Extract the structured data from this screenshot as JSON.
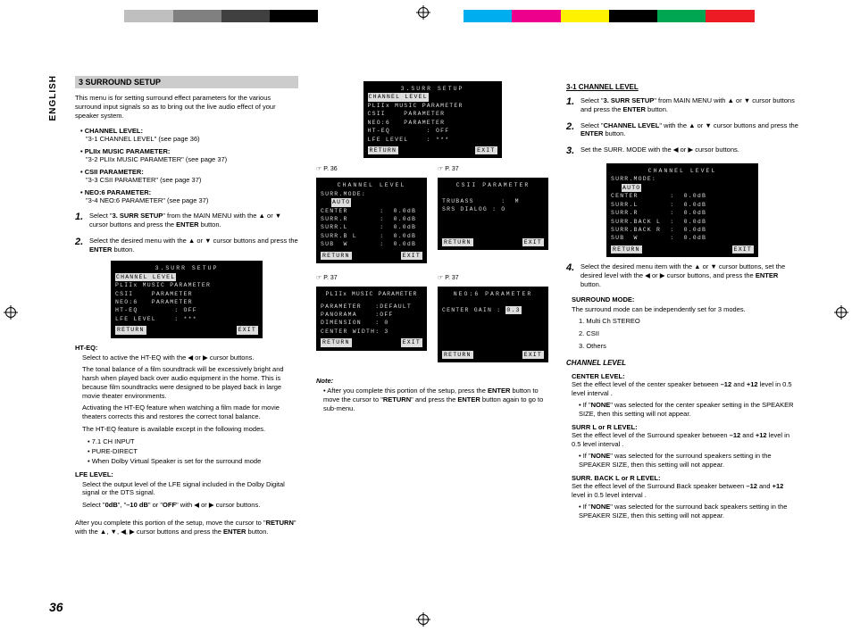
{
  "colorbar": [
    "#ffffff",
    "#bfbfbf",
    "#808080",
    "#404040",
    "#000000",
    "#ffffff",
    "#ffffff",
    "#ffffff",
    "#00aeef",
    "#ec008c",
    "#fff200",
    "#000000",
    "#00a651",
    "#ed1c24",
    "#ffffff"
  ],
  "english_tab": "ENGLISH",
  "page_number": "36",
  "section3": {
    "header": "3 SURROUND SETUP",
    "intro": "This menu is for setting surround effect parameters for the various surround input signals so as to bring out the live audio effect of your speaker system.",
    "bullets": [
      {
        "title": "• CHANNEL LEVEL:",
        "sub": "\"3-1 CHANNEL LEVEL\" (see page 36)"
      },
      {
        "title": "• PLIIx MUSIC PARAMETER:",
        "sub": "\"3-2 PLIIx MUSIC PARAMETER\" (see page 37)"
      },
      {
        "title": "• CSII PARAMETER:",
        "sub": "\"3-3 CSII PARAMETER\" (see page 37)"
      },
      {
        "title": "• NEO:6 PARAMETER:",
        "sub": "\"3-4 NEO:6 PARAMETER\" (see page 37)"
      }
    ],
    "step1": "Select \"3. SURR SETUP\" from the MAIN MENU with the ▲ or ▼ cursor buttons and press the ENTER button.",
    "step2": "Select the desired menu with the ▲ or ▼ cursor buttons and press the ENTER button.",
    "hteq_title": "HT-EQ:",
    "hteq_p1": "Select to active the HT-EQ with the ◀ or ▶ cursor buttons.",
    "hteq_p2": "The tonal balance of a film soundtrack will be excessively bright and harsh when played back over audio equipment in the home. This is because film soundtracks were designed to be played back in large movie theater environments.",
    "hteq_p3": "Activating the HT-EQ feature when watching a film made for movie theaters corrects this and restores the correct tonal balance.",
    "hteq_p4": "The HT-EQ feature is available except in the following modes.",
    "hteq_modes": [
      "• 7.1 CH INPUT",
      "• PURE-DIRECT",
      "• When Dolby Virtual Speaker is set for the surround mode"
    ],
    "lfe_title": "LFE LEVEL:",
    "lfe_p1": "Select the output level of the LFE signal included in the Dolby Digital signal or the DTS signal.",
    "lfe_p2": "Select \"0dB\", \"–10 dB\" or \"OFF\" with ◀ or ▶ cursor buttons.",
    "after": "After you complete this portion of the setup, move the cursor to \"RETURN\" with the ▲, ▼, ◀, ▶ cursor buttons and press the ENTER button."
  },
  "osd_main": {
    "title": "3.SURR SETUP",
    "rows": [
      "CHANNEL LEVEL",
      "PLIIx MUSIC PARAMETER",
      "CSII    PARAMETER",
      "NEO:6   PARAMETER",
      "",
      "HT-EQ        : OFF",
      "LFE LEVEL    : ***"
    ],
    "return": "RETURN",
    "exit": "EXIT"
  },
  "osd_grid": {
    "top": {
      "title": "3.SURR SETUP",
      "rows": [
        "CHANNEL LEVEL",
        "PLIIx MUSIC PARAMETER",
        "CSII    PARAMETER",
        "NEO:6   PARAMETER",
        "",
        "HT-EQ        : OFF",
        "LFE LEVEL    : ***"
      ],
      "return": "RETURN",
      "exit": "EXIT"
    },
    "ref1": "☞ P. 36",
    "ref2": "☞ P. 37",
    "ref3": "☞ P. 37",
    "ref4": "☞ P. 37",
    "chlevel": {
      "title": "CHANNEL LEVEL",
      "mode": "SURR.MODE:",
      "mode_val": "AUTO",
      "rows": [
        "CENTER       :  0.0dB",
        "SURR.R       :  0.0dB",
        "SURR.L       :  0.0dB",
        "SURR.B L     :  0.0dB",
        "SUB  W       :  0.0dB"
      ],
      "return": "RETURN",
      "exit": "EXIT"
    },
    "csii": {
      "title": "CSII PARAMETER",
      "rows": [
        "TRUBASS      :  M",
        "SRS DIALOG : O"
      ],
      "return": "RETURN",
      "exit": "EXIT"
    },
    "pliix": {
      "title": "PLIIx MUSIC PARAMETER",
      "rows": [
        "PARAMETER   :DEFAULT",
        "",
        "PANORAMA    :OFF",
        "DIMENSION   : 0",
        "CENTER WIDTH: 3"
      ],
      "return": "RETURN",
      "exit": "EXIT"
    },
    "neo6": {
      "title": "NEO:6 PARAMETER",
      "rows": [
        "CENTER GAIN : 0.3"
      ],
      "return": "RETURN",
      "exit": "EXIT"
    }
  },
  "note": {
    "title": "Note:",
    "body": "• After you complete this portion of the setup, press the ENTER button to move the cursor to \"RETURN\" and press the ENTER button again to go to sub-menu."
  },
  "section31": {
    "heading": "3-1 CHANNEL LEVEL",
    "step1": "Select \"3. SURR SETUP\" from MAIN MENU with ▲ or ▼ cursor buttons and press the ENTER button.",
    "step2": "Select \"CHANNEL LEVEL\" with the ▲ or ▼ cursor buttons and press the ENTER button.",
    "step3": "Set the SURR. MODE with the ◀ or ▶ cursor buttons.",
    "step4": "Select the desired menu item with the ▲ or ▼ cursor buttons, set the desired level with the ◀ or ▶ cursor buttons, and press the ENTER button.",
    "surrmode_title": "SURROUND MODE:",
    "surrmode_body": "The surround mode can be independently set for 3 modes.",
    "surrmode_list": [
      "1. Multi Ch STEREO",
      "2. CSII",
      "3. Others"
    ],
    "ci_head": "CHANNEL LEVEL",
    "center_title": "CENTER LEVEL:",
    "center_body": "Set the effect level of the center speaker between –12 and +12 level in 0.5 level interval .",
    "center_note": "• If \"NONE\" was selected for the center speaker setting in the SPEAKER SIZE, then this setting will not appear.",
    "surr_title": "SURR L or R LEVEL:",
    "surr_body": "Set the effect level of the Surround speaker between –12 and +12 level in 0.5 level interval .",
    "surr_note": "• If \"NONE\" was selected for the surround speakers setting in the SPEAKER SIZE, then this setting will not appear.",
    "back_title": "SURR. BACK L or R LEVEL:",
    "back_body": "Set the effect level of the Surround Back speaker between –12 and +12 level in 0.5 level interval .",
    "back_note": "• If \"NONE\" was selected for the surround back speakers setting in the SPEAKER SIZE, then this setting will not appear."
  },
  "osd_chlevel2": {
    "title": "CHANNEL  LEVEL",
    "mode": "SURR.MODE:",
    "mode_val": "AUTO",
    "rows": [
      "CENTER       :  0.0dB",
      "SURR.L       :  0.0dB",
      "SURR.R       :  0.0dB",
      "SURR.BACK L  :  0.0dB",
      "SURR.BACK R  :  0.0dB",
      "SUB  W       :  0.0dB"
    ],
    "return": "RETURN",
    "exit": "EXIT"
  }
}
